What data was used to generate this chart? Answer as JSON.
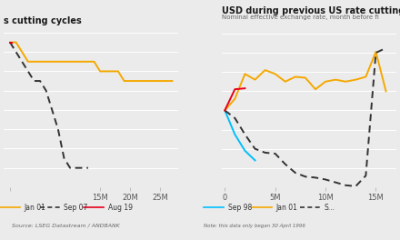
{
  "left_title": "s cutting cycles",
  "right_title": "USD during previous US rate cutting cyc",
  "right_subtitle": "Nominal effective exchange rate, month before fi",
  "source_text": "Source: LSEG Datastream / ANDBANK",
  "note_text": "Note: this data only began 30 April 1996",
  "left_ylim": [
    1.5,
    5.6
  ],
  "left_xlim": [
    -1,
    28
  ],
  "left_xticks": [
    0,
    15,
    20,
    25
  ],
  "left_xticklabels": [
    "",
    "15M",
    "20M",
    "25M"
  ],
  "left_jan01": {
    "x": [
      0,
      1,
      2,
      3,
      4,
      5,
      6,
      7,
      8,
      9,
      10,
      11,
      12,
      13,
      14,
      15,
      16,
      17,
      18,
      19,
      20,
      21,
      22,
      23,
      24,
      25,
      26,
      27
    ],
    "y": [
      5.25,
      5.25,
      5.0,
      4.75,
      4.75,
      4.75,
      4.75,
      4.75,
      4.75,
      4.75,
      4.75,
      4.75,
      4.75,
      4.75,
      4.75,
      4.5,
      4.5,
      4.5,
      4.5,
      4.25,
      4.25,
      4.25,
      4.25,
      4.25,
      4.25,
      4.25,
      4.25,
      4.25
    ],
    "color": "#F5A800",
    "label": "Jan 01"
  },
  "left_sep07": {
    "x": [
      0,
      1,
      2,
      3,
      4,
      5,
      6,
      7,
      8,
      9,
      10,
      11,
      12,
      13
    ],
    "y": [
      5.25,
      5.0,
      4.75,
      4.5,
      4.25,
      4.25,
      4.0,
      3.5,
      3.0,
      2.25,
      2.0,
      2.0,
      2.0,
      2.0
    ],
    "color": "#333333",
    "label": "Sep 07"
  },
  "left_aug19": {
    "x": [
      0,
      0.3
    ],
    "y": [
      5.25,
      5.25
    ],
    "color": "#E8001C",
    "label": "Aug 19"
  },
  "right_ylim": [
    92,
    108.5
  ],
  "right_xlim": [
    -0.3,
    17
  ],
  "right_yticks": [
    92,
    94,
    96,
    98,
    100,
    102,
    104,
    106,
    108
  ],
  "right_xticks": [
    0,
    5,
    10,
    15
  ],
  "right_xticklabels": [
    "0",
    "5M",
    "10M",
    "15M"
  ],
  "right_sep98": {
    "x": [
      0,
      1,
      2,
      3
    ],
    "y": [
      100.0,
      97.5,
      95.8,
      94.8
    ],
    "color": "#00BFFF",
    "label": "Sep 98"
  },
  "right_jan01": {
    "x": [
      0,
      1,
      2,
      3,
      4,
      5,
      6,
      7,
      8,
      9,
      10,
      11,
      12,
      13,
      14,
      15,
      16
    ],
    "y": [
      100.0,
      101.2,
      103.8,
      103.2,
      104.2,
      103.8,
      103.0,
      103.5,
      103.4,
      102.2,
      103.0,
      103.2,
      103.0,
      103.2,
      103.5,
      106.1,
      102.0
    ],
    "color": "#F5A800",
    "label": "Jan 01"
  },
  "right_sep07": {
    "x": [
      0,
      1,
      2,
      3,
      4,
      5,
      6,
      7,
      8,
      9,
      10,
      11,
      12,
      13,
      14,
      15,
      16
    ],
    "y": [
      100.0,
      99.2,
      97.5,
      96.0,
      95.6,
      95.5,
      94.4,
      93.5,
      93.1,
      93.0,
      92.8,
      92.5,
      92.2,
      92.1,
      93.2,
      106.0,
      106.5
    ],
    "color": "#333333",
    "label": "S..."
  },
  "right_aug19": {
    "x": [
      0,
      1,
      2
    ],
    "y": [
      100.0,
      102.2,
      102.3
    ],
    "color": "#E8001C",
    "label": "Aug 19"
  },
  "bg_color": "#EBEBEB",
  "plot_bg": "#EBEBEB",
  "grid_color": "#FFFFFF",
  "title_color": "#1a1a1a",
  "label_color": "#555555"
}
